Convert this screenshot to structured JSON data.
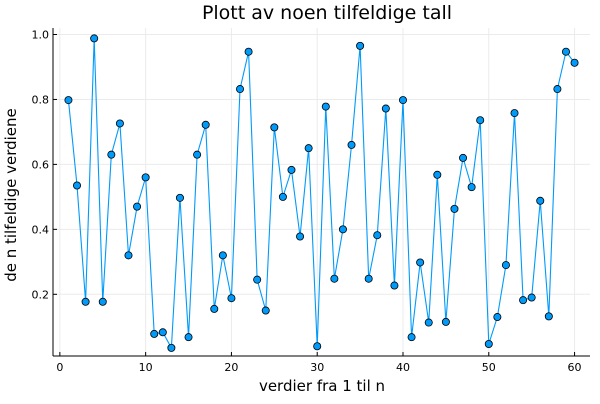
{
  "colors": {
    "series": "#009AFA",
    "marker_edge": "#000000",
    "grid": "#EBEBEB",
    "background": "#FFFFFF"
  },
  "chart_data": {
    "type": "scatter",
    "title": "Plott av noen tilfeldige tall",
    "xlabel": "verdier fra 1 til n",
    "ylabel": "de n tilfeldige verdiene",
    "xlim": [
      -0.8,
      61.8
    ],
    "ylim": [
      0.01,
      1.02
    ],
    "xticks": [
      0,
      10,
      20,
      30,
      40,
      50,
      60
    ],
    "yticks": [
      0.2,
      0.4,
      0.6,
      0.8,
      1.0
    ],
    "xtick_labels": [
      "0",
      "10",
      "20",
      "30",
      "40",
      "50",
      "60"
    ],
    "ytick_labels": [
      "0.2",
      "0.4",
      "0.6",
      "0.8",
      "1.0"
    ],
    "grid": true,
    "legend": false,
    "markers": "circle",
    "connected": true,
    "x": [
      1,
      2,
      3,
      4,
      5,
      6,
      7,
      8,
      9,
      10,
      11,
      12,
      13,
      14,
      15,
      16,
      17,
      18,
      19,
      20,
      21,
      22,
      23,
      24,
      25,
      26,
      27,
      28,
      29,
      30,
      31,
      32,
      33,
      34,
      35,
      36,
      37,
      38,
      39,
      40,
      41,
      42,
      43,
      44,
      45,
      46,
      47,
      48,
      49,
      50,
      51,
      52,
      53,
      54,
      55,
      56,
      57,
      58,
      59,
      60
    ],
    "y": [
      0.798,
      0.535,
      0.177,
      0.988,
      0.177,
      0.63,
      0.726,
      0.32,
      0.47,
      0.56,
      0.078,
      0.083,
      0.035,
      0.497,
      0.068,
      0.63,
      0.722,
      0.155,
      0.32,
      0.188,
      0.832,
      0.947,
      0.245,
      0.15,
      0.714,
      0.5,
      0.583,
      0.378,
      0.65,
      0.04,
      0.778,
      0.248,
      0.4,
      0.66,
      0.965,
      0.248,
      0.382,
      0.772,
      0.227,
      0.798,
      0.068,
      0.298,
      0.113,
      0.568,
      0.115,
      0.463,
      0.62,
      0.53,
      0.736,
      0.047,
      0.13,
      0.29,
      0.758,
      0.182,
      0.19,
      0.488,
      0.132,
      0.832,
      0.947,
      0.913
    ]
  }
}
